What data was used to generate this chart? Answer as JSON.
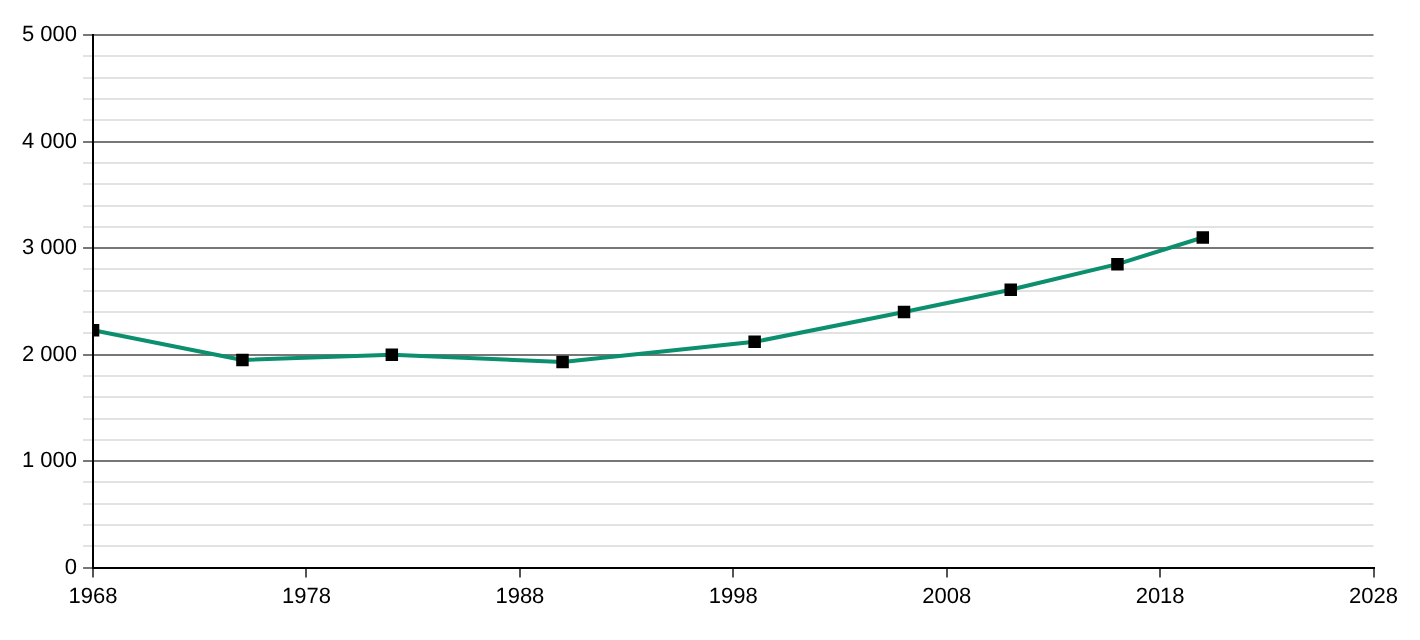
{
  "chart_data": {
    "type": "line",
    "x": [
      1968,
      1975,
      1982,
      1990,
      1999,
      2006,
      2011,
      2016,
      2020
    ],
    "series": [
      {
        "color": "#0b8f6e",
        "values": [
          2230,
          1950,
          2000,
          1930,
          2120,
          2400,
          2610,
          2850,
          3100
        ]
      }
    ],
    "xlim": [
      1968,
      2028
    ],
    "xticks": [
      1968,
      1978,
      1988,
      1998,
      2008,
      2018,
      2028
    ],
    "ylim": [
      0,
      5000
    ],
    "yticks": [
      {
        "value": 0,
        "label": "0"
      },
      {
        "value": 200,
        "label": null
      },
      {
        "value": 400,
        "label": null
      },
      {
        "value": 600,
        "label": null
      },
      {
        "value": 800,
        "label": null
      },
      {
        "value": 1000,
        "label": "1 000"
      },
      {
        "value": 1200,
        "label": null
      },
      {
        "value": 1400,
        "label": null
      },
      {
        "value": 1600,
        "label": null
      },
      {
        "value": 1800,
        "label": null
      },
      {
        "value": 2000,
        "label": "2 000"
      },
      {
        "value": 2200,
        "label": null
      },
      {
        "value": 2400,
        "label": null
      },
      {
        "value": 2600,
        "label": null
      },
      {
        "value": 2800,
        "label": null
      },
      {
        "value": 3000,
        "label": "3 000"
      },
      {
        "value": 3200,
        "label": null
      },
      {
        "value": 3400,
        "label": null
      },
      {
        "value": 3600,
        "label": null
      },
      {
        "value": 3800,
        "label": null
      },
      {
        "value": 4000,
        "label": "4 000"
      },
      {
        "value": 4200,
        "label": null
      },
      {
        "value": 4400,
        "label": null
      },
      {
        "value": 4600,
        "label": null
      },
      {
        "value": 4800,
        "label": null
      },
      {
        "value": 5000,
        "label": "5 000"
      }
    ],
    "grid": "y",
    "marker": "square",
    "line_style": "solid",
    "legend": false
  }
}
